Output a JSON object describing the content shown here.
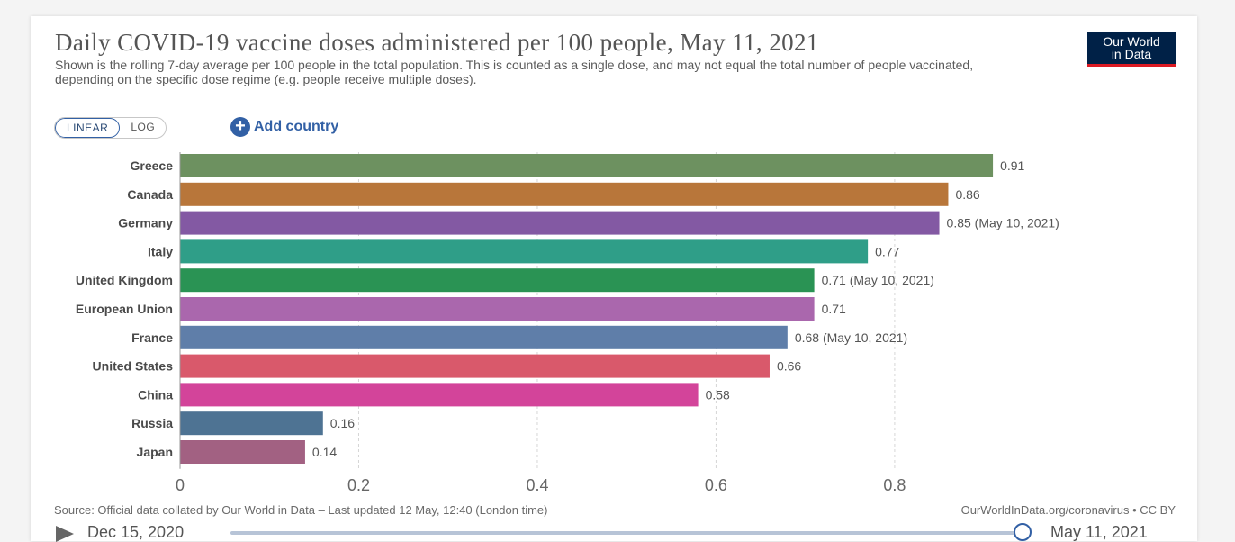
{
  "header": {
    "title": "Daily COVID-19 vaccine doses administered per 100 people, May 11, 2021",
    "subtitle": "Shown is the rolling 7-day average per 100 people in the total population. This is counted as a single dose, and may not equal the total number of people vaccinated, depending on the specific dose regime (e.g. people receive multiple doses).",
    "logo_line1": "Our World",
    "logo_line2": "in Data"
  },
  "controls": {
    "linear_label": "LINEAR",
    "log_label": "LOG",
    "add_country_label": "Add country"
  },
  "chart_data": {
    "type": "bar",
    "orientation": "horizontal",
    "categories": [
      "Greece",
      "Canada",
      "Germany",
      "Italy",
      "United Kingdom",
      "European Union",
      "France",
      "United States",
      "China",
      "Russia",
      "Japan"
    ],
    "values": [
      0.91,
      0.86,
      0.85,
      0.77,
      0.71,
      0.71,
      0.68,
      0.66,
      0.58,
      0.16,
      0.14
    ],
    "value_labels": [
      "0.91",
      "0.86",
      "0.85 (May 10, 2021)",
      "0.77",
      "0.71 (May 10, 2021)",
      "0.71",
      "0.68 (May 10, 2021)",
      "0.66",
      "0.58",
      "0.16",
      "0.14"
    ],
    "colors": [
      "#6d9160",
      "#b8763a",
      "#8359a3",
      "#2f9e88",
      "#2a9354",
      "#aa67ad",
      "#5f7ea9",
      "#d9596b",
      "#d3449a",
      "#4e7393",
      "#a26182"
    ],
    "xlim": [
      0,
      0.92
    ],
    "x_ticks": [
      0,
      0.2,
      0.4,
      0.6,
      0.8
    ],
    "x_tick_labels": [
      "0",
      "0.2",
      "0.4",
      "0.6",
      "0.8"
    ],
    "grid": true,
    "legend": "none"
  },
  "footer": {
    "source": "Source: Official data collated by Our World in Data – Last updated 12 May, 12:40 (London time)",
    "credit": "OurWorldInData.org/coronavirus • CC BY"
  },
  "timeline": {
    "start_date": "Dec 15, 2020",
    "end_date": "May 11, 2021"
  }
}
